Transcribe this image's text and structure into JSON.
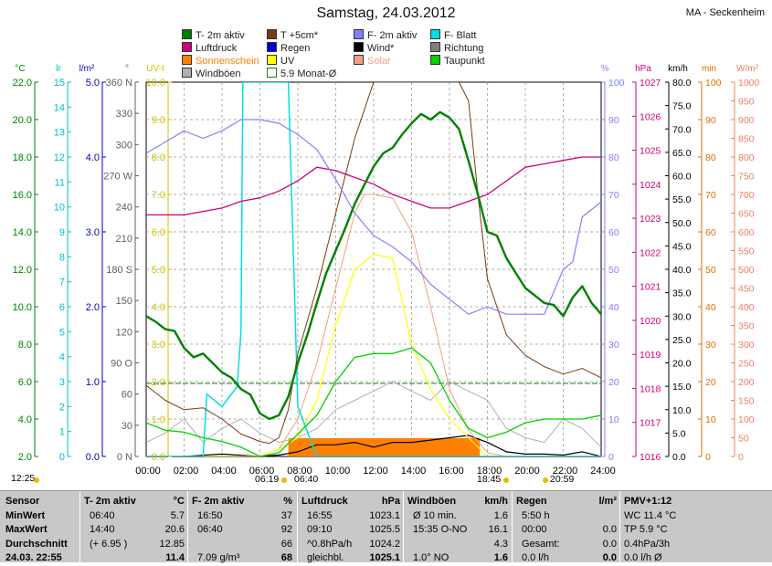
{
  "header": {
    "title": "Samstag, 24.03.2012",
    "station": "MA - Seckenheim"
  },
  "legend": [
    {
      "label": "T- 2m aktiv",
      "color": "#008000"
    },
    {
      "label": "T +5cm*",
      "color": "#7a3a10"
    },
    {
      "label": "F- 2m aktiv",
      "color": "#8080ff"
    },
    {
      "label": "F- Blatt",
      "color": "#00e0e0"
    },
    {
      "label": "Luftdruck",
      "color": "#d0007a"
    },
    {
      "label": "Regen",
      "color": "#0000d0"
    },
    {
      "label": "Wind*",
      "color": "#000000"
    },
    {
      "label": "Richtung",
      "color": "#808080"
    },
    {
      "label": "Sonnenschein",
      "color": "#ff8000"
    },
    {
      "label": "UV",
      "color": "#ffff00"
    },
    {
      "label": "Solar",
      "color": "#f0a080"
    },
    {
      "label": "Taupunkt",
      "color": "#00d000"
    },
    {
      "label": "Windböen",
      "color": "#b0b0b0"
    },
    {
      "label": "5.9 Monat-Ø",
      "color": "#1a7a1a"
    }
  ],
  "axes": {
    "temp": {
      "unit": "°C",
      "color": "#008000",
      "ticks": [
        "22.0",
        "20.0",
        "18.0",
        "16.0",
        "14.0",
        "12.0",
        "10.0",
        "8.0",
        "6.0",
        "4.0",
        "2.0"
      ]
    },
    "blatt": {
      "unit": "lr",
      "color": "#00c0c0",
      "ticks": [
        "15",
        "14",
        "13",
        "12",
        "11",
        "10",
        "9",
        "8",
        "7",
        "6",
        "5",
        "4",
        "3",
        "2",
        "1",
        "0"
      ]
    },
    "rain": {
      "unit": "l/m²",
      "color": "#0000c0",
      "ticks": [
        "5.0",
        "4.0",
        "3.0",
        "2.0",
        "1.0",
        "0.0"
      ]
    },
    "dir": {
      "unit": "°",
      "color": "#606060",
      "ticks": [
        "360 N",
        "330",
        "300",
        "270 W",
        "240",
        "210",
        "180 S",
        "150",
        "120",
        "90 O",
        "60",
        "30",
        "0 N"
      ]
    },
    "uv": {
      "unit": "UV-I",
      "color": "#d0c000",
      "ticks": [
        "10.0",
        "9.0",
        "8.0",
        "7.0",
        "6.0",
        "5.0",
        "4.0",
        "3.0",
        "2.0",
        "1.0",
        "0.0"
      ]
    },
    "hum": {
      "unit": "%",
      "color": "#8080ff",
      "ticks": [
        "100",
        "90",
        "80",
        "70",
        "60",
        "50",
        "40",
        "30",
        "20",
        "10",
        "0"
      ]
    },
    "press": {
      "unit": "hPa",
      "color": "#d0007a",
      "ticks": [
        "1027",
        "1026",
        "1025",
        "1024",
        "1023",
        "1022",
        "1021",
        "1020",
        "1019",
        "1018",
        "1017",
        "1016"
      ]
    },
    "wind": {
      "unit": "km/h",
      "color": "#000000",
      "ticks": [
        "80.0",
        "75.0",
        "70.0",
        "65.0",
        "60.0",
        "55.0",
        "50.0",
        "45.0",
        "40.0",
        "35.0",
        "30.0",
        "25.0",
        "20.0",
        "15.0",
        "10.0",
        "5.0",
        "0.0"
      ]
    },
    "sun": {
      "unit": "min",
      "color": "#e07000",
      "ticks": [
        "100",
        "90",
        "80",
        "70",
        "60",
        "50",
        "40",
        "30",
        "20",
        "10",
        "0"
      ]
    },
    "solar": {
      "unit": "W/m²",
      "color": "#f08060",
      "ticks": [
        "1000",
        "950",
        "900",
        "850",
        "800",
        "750",
        "700",
        "650",
        "600",
        "550",
        "500",
        "450",
        "400",
        "350",
        "300",
        "250",
        "200",
        "150",
        "100",
        "50",
        "0"
      ]
    }
  },
  "xaxis": {
    "ticks": [
      "00:00",
      "02:00",
      "04:00",
      "06:00",
      "08:00",
      "10:00",
      "12:00",
      "14:00",
      "16:00",
      "18:00",
      "20:00",
      "22:00",
      "24:00"
    ]
  },
  "sun_times": {
    "moonrise": "12:25",
    "sunrise": "06:19",
    "civil_start": "06:40",
    "sunset": "18:45",
    "civil_end": "20:59"
  },
  "chart_data": {
    "type": "line",
    "title": "Samstag, 24.03.2012",
    "x_unit": "hour",
    "xlim": [
      0,
      24
    ],
    "series": [
      {
        "name": "T- 2m aktiv",
        "axis": "°C",
        "x": [
          0,
          0.5,
          1,
          1.5,
          2,
          2.5,
          3,
          3.5,
          4,
          4.5,
          5,
          5.5,
          6,
          6.5,
          7,
          7.5,
          8,
          8.5,
          9,
          9.5,
          10,
          10.5,
          11,
          11.5,
          12,
          12.5,
          13,
          13.5,
          14,
          14.5,
          15,
          15.5,
          16,
          16.5,
          17,
          17.5,
          18,
          18.5,
          19,
          19.5,
          20,
          20.5,
          21,
          21.5,
          22,
          22.5,
          23,
          23.5,
          24
        ],
        "y": [
          9.5,
          9.2,
          8.8,
          8.7,
          7.8,
          7.3,
          7.5,
          7.0,
          6.5,
          6.2,
          5.6,
          5.3,
          4.3,
          4.0,
          4.2,
          5.2,
          7.0,
          8.5,
          10.2,
          11.8,
          13.0,
          14.2,
          15.5,
          16.5,
          17.5,
          18.2,
          18.5,
          19.2,
          19.8,
          20.3,
          20.0,
          20.4,
          20.1,
          19.5,
          17.8,
          16.0,
          14.0,
          13.8,
          12.6,
          11.8,
          11.0,
          10.6,
          10.2,
          10.1,
          9.5,
          10.5,
          11.1,
          10.2,
          9.6
        ]
      },
      {
        "name": "T +5cm*",
        "axis": "°C",
        "x": [
          0,
          1,
          2,
          3,
          4,
          5,
          6,
          6.5,
          7,
          7.5,
          8,
          9,
          10,
          11,
          12,
          12.5,
          13,
          14,
          15,
          16,
          16.5,
          17,
          17.5,
          18,
          19,
          20,
          21,
          22,
          23,
          24
        ],
        "y": [
          5.8,
          5.0,
          4.5,
          4.6,
          4.0,
          3.2,
          2.8,
          2.7,
          3.0,
          4.5,
          7.5,
          11.0,
          15.0,
          19.0,
          22.0,
          23.5,
          24.0,
          25.0,
          26.5,
          28.0,
          25.0,
          21.0,
          16.0,
          11.5,
          8.5,
          7.4,
          6.8,
          6.4,
          6.7,
          6.2
        ]
      },
      {
        "name": "F- 2m aktiv",
        "axis": "%",
        "x": [
          0,
          1,
          2,
          3,
          4,
          5,
          6,
          7,
          8,
          9,
          10,
          11,
          12,
          13,
          14,
          15,
          16,
          17,
          18,
          19,
          20,
          21,
          22,
          22.5,
          23,
          24
        ],
        "y": [
          81,
          84,
          87,
          85,
          87,
          90,
          90,
          89,
          86,
          82,
          74,
          65,
          59,
          56,
          52,
          46,
          42,
          38,
          40,
          38,
          38,
          38,
          50,
          52,
          64,
          68
        ]
      },
      {
        "name": "F- Blatt",
        "axis": "lr",
        "x": [
          0,
          2,
          3,
          3.2,
          4,
          4.8,
          5,
          5.1,
          6,
          7,
          7.5,
          8,
          9,
          12,
          16,
          18,
          20,
          24
        ],
        "y": [
          0,
          0,
          0,
          2.5,
          2,
          2.8,
          5,
          15,
          15,
          15,
          15,
          2,
          0,
          0,
          0,
          0,
          0,
          0
        ]
      },
      {
        "name": "Luftdruck",
        "axis": "hPa",
        "x": [
          0,
          1,
          2,
          3,
          4,
          5,
          6,
          7,
          8,
          9,
          10,
          11,
          12,
          13,
          14,
          15,
          16,
          17,
          18,
          19,
          20,
          21,
          22,
          23,
          24
        ],
        "y": [
          1023.1,
          1023.1,
          1023.1,
          1023.2,
          1023.3,
          1023.5,
          1023.6,
          1023.8,
          1024.1,
          1024.5,
          1024.4,
          1024.2,
          1024.0,
          1023.7,
          1023.5,
          1023.3,
          1023.3,
          1023.5,
          1023.7,
          1024.1,
          1024.5,
          1024.6,
          1024.7,
          1024.8,
          1024.8
        ]
      },
      {
        "name": "Taupunkt",
        "axis": "°C",
        "x": [
          0,
          1,
          2,
          3,
          4,
          5,
          6,
          7,
          8,
          9,
          10,
          11,
          12,
          13,
          14,
          15,
          16,
          17,
          18,
          19,
          20,
          21,
          22,
          23,
          24
        ],
        "y": [
          3.8,
          3.4,
          3.3,
          3.0,
          2.8,
          2.5,
          2.0,
          2.2,
          3.2,
          4.2,
          6.0,
          7.3,
          7.5,
          7.5,
          7.8,
          7.0,
          5.0,
          3.5,
          3.0,
          3.3,
          3.8,
          4.0,
          4.0,
          4.0,
          4.2
        ]
      },
      {
        "name": "UV",
        "axis": "UV-I",
        "x": [
          0,
          6,
          7,
          8,
          9,
          10,
          11,
          12,
          13,
          14,
          15,
          16,
          17,
          18,
          24
        ],
        "y": [
          0,
          0,
          0.2,
          0.5,
          1.5,
          3.5,
          5.0,
          5.4,
          5.3,
          3.0,
          1.8,
          1.0,
          0.5,
          0,
          0
        ]
      },
      {
        "name": "Solar",
        "axis": "W/m²",
        "x": [
          0,
          6,
          7,
          8,
          9,
          10,
          11,
          11.5,
          12,
          13,
          14,
          15,
          16,
          17,
          18,
          19,
          24
        ],
        "y": [
          0,
          0,
          20,
          100,
          250,
          450,
          650,
          700,
          700,
          690,
          600,
          400,
          180,
          70,
          10,
          0,
          0
        ]
      },
      {
        "name": "Windböen",
        "axis": "km/h",
        "x": [
          0,
          1,
          2,
          3,
          4,
          5,
          6,
          7,
          8,
          9,
          10,
          11,
          12,
          13,
          14,
          15,
          16,
          17,
          18,
          19,
          20,
          21,
          22,
          23,
          24
        ],
        "y": [
          3,
          5,
          8,
          3,
          6,
          8,
          5,
          3,
          4,
          6,
          10,
          12,
          14,
          16,
          14,
          12,
          16,
          14,
          12,
          6,
          4,
          3,
          8,
          6,
          2
        ]
      },
      {
        "name": "Wind*",
        "axis": "km/h",
        "x": [
          0,
          2,
          4,
          6,
          7,
          8,
          9,
          10,
          11,
          12,
          13,
          14,
          15,
          16,
          17,
          18,
          19,
          20,
          21,
          22,
          23,
          24
        ],
        "y": [
          0,
          0,
          0.5,
          0,
          0.3,
          1.0,
          2.5,
          2.5,
          3.0,
          2.0,
          3.0,
          3.0,
          3.5,
          4.0,
          4.5,
          3.0,
          1.0,
          0.5,
          0.5,
          0.3,
          1.0,
          0
        ]
      },
      {
        "name": "Sonnenschein",
        "axis": "min",
        "x": [
          7.5,
          8,
          9,
          10,
          11,
          12,
          13,
          14,
          15,
          16,
          17,
          17.6
        ],
        "y": [
          5,
          5,
          5,
          5,
          5,
          5,
          5,
          5,
          5,
          5,
          5,
          5
        ]
      }
    ]
  },
  "stats": {
    "col1": {
      "hdr": "Sensor",
      "rows": [
        "MinWert",
        "MaxWert",
        "Durchschnitt",
        "24.03. 22:55"
      ]
    },
    "col2": {
      "hdr": "T- 2m aktiv",
      "unit": "°C",
      "rows": [
        [
          "06:40",
          "5.7"
        ],
        [
          "14:40",
          "20.6"
        ],
        [
          "(+ 6.95 )",
          "12.85"
        ],
        [
          "",
          "11.4"
        ]
      ]
    },
    "col3": {
      "hdr": "F- 2m aktiv",
      "unit": "%",
      "rows": [
        [
          "16:50",
          "37"
        ],
        [
          "06:40",
          "92"
        ],
        [
          "",
          "66"
        ],
        [
          "7.09 g/m³",
          "68"
        ]
      ]
    },
    "col4": {
      "hdr": "Luftdruck",
      "unit": "hPa",
      "rows": [
        [
          "16:55",
          "1023.1"
        ],
        [
          "09:10",
          "1025.5"
        ],
        [
          "^0.8hPa/h",
          "1024.2"
        ],
        [
          "gleichbl.",
          "1025.1"
        ]
      ]
    },
    "col5": {
      "hdr": "Windböen",
      "unit": "km/h",
      "rows": [
        [
          "Ø 10 min.",
          "1.6"
        ],
        [
          "15:35 O-NO",
          "16.1"
        ],
        [
          "",
          "4.3"
        ],
        [
          "1.0° NO",
          "1.6"
        ]
      ]
    },
    "col6": {
      "hdr": "Regen",
      "unit": "l/m²",
      "rows": [
        [
          "5:50 h",
          ""
        ],
        [
          "00:00",
          "0.0"
        ],
        [
          "Gesamt:",
          "0.0"
        ],
        [
          "0.0 l/h",
          "0.0"
        ]
      ]
    },
    "col7": {
      "hdr": "PMV+1:12",
      "rows": [
        "WC 11.4 °C",
        "TP 5.9 °C",
        "0.4hPa/3h",
        "0.0 l/h Ø"
      ]
    }
  }
}
